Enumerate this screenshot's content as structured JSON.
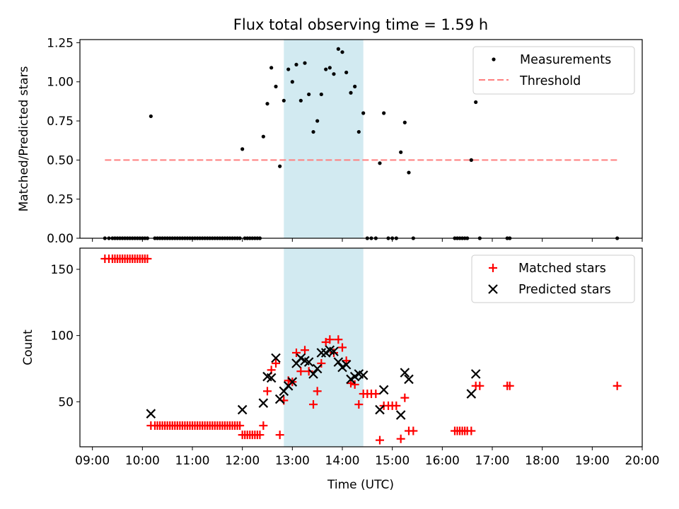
{
  "chart_data": {
    "type": "scatter",
    "title": "Flux total observing time = 1.59 h",
    "xlabel": "Time (UTC)",
    "x_units": "hours UTC",
    "xlim": [
      8.75,
      20.0
    ],
    "x_ticks": [
      9,
      10,
      11,
      12,
      13,
      14,
      15,
      16,
      17,
      18,
      19,
      20
    ],
    "x_tick_labels": [
      "09:00",
      "10:00",
      "11:00",
      "12:00",
      "13:00",
      "14:00",
      "15:00",
      "16:00",
      "17:00",
      "18:00",
      "19:00",
      "20:00"
    ],
    "highlight_span": {
      "x_start": 12.83,
      "x_end": 14.42,
      "color": "#add8e6"
    },
    "top": {
      "ylabel": "Matched/Predicted stars",
      "ylim": [
        0,
        1.27
      ],
      "y_ticks": [
        0,
        0.25,
        0.5,
        0.75,
        1.0,
        1.25
      ],
      "y_tick_labels": [
        "0.00",
        "0.25",
        "0.50",
        "0.75",
        "1.00",
        "1.25"
      ],
      "legend_position": "top-right",
      "legend": [
        "Measurements",
        "Threshold"
      ],
      "threshold": {
        "name": "Threshold",
        "y": 0.5,
        "x_start": 9.25,
        "x_end": 19.5,
        "color": "#ff7f7f"
      },
      "measurements": {
        "name": "Measurements",
        "color": "#000000",
        "x": [
          9.25,
          9.33,
          9.4,
          9.45,
          9.5,
          9.55,
          9.6,
          9.65,
          9.7,
          9.75,
          9.8,
          9.85,
          9.9,
          9.95,
          10.0,
          10.05,
          10.1,
          10.17,
          10.25,
          10.3,
          10.35,
          10.4,
          10.45,
          10.5,
          10.55,
          10.6,
          10.65,
          10.7,
          10.75,
          10.8,
          10.85,
          10.9,
          10.95,
          11.0,
          11.05,
          11.1,
          11.15,
          11.2,
          11.25,
          11.3,
          11.35,
          11.4,
          11.45,
          11.5,
          11.55,
          11.6,
          11.65,
          11.7,
          11.75,
          11.8,
          11.85,
          11.9,
          11.95,
          12.0,
          12.05,
          12.1,
          12.15,
          12.2,
          12.25,
          12.3,
          12.35,
          12.42,
          12.5,
          12.58,
          12.67,
          12.75,
          12.83,
          12.92,
          13.0,
          13.08,
          13.17,
          13.25,
          13.33,
          13.42,
          13.5,
          13.58,
          13.67,
          13.75,
          13.83,
          13.92,
          14.0,
          14.08,
          14.17,
          14.25,
          14.33,
          14.42,
          14.5,
          14.58,
          14.67,
          14.75,
          14.83,
          14.92,
          15.0,
          15.08,
          15.17,
          15.25,
          15.33,
          15.42,
          16.25,
          16.3,
          16.35,
          16.4,
          16.45,
          16.5,
          16.58,
          16.67,
          16.75,
          17.3,
          17.35,
          19.5
        ],
        "y": [
          0,
          0,
          0,
          0,
          0,
          0,
          0,
          0,
          0,
          0,
          0,
          0,
          0,
          0,
          0,
          0,
          0,
          0.78,
          0,
          0,
          0,
          0,
          0,
          0,
          0,
          0,
          0,
          0,
          0,
          0,
          0,
          0,
          0,
          0,
          0,
          0,
          0,
          0,
          0,
          0,
          0,
          0,
          0,
          0,
          0,
          0,
          0,
          0,
          0,
          0,
          0,
          0,
          0,
          0.57,
          0,
          0,
          0,
          0,
          0,
          0,
          0,
          0.65,
          0.86,
          1.09,
          0.97,
          0.46,
          0.88,
          1.08,
          1.0,
          1.11,
          0.88,
          1.12,
          0.92,
          0.68,
          0.75,
          0.92,
          1.08,
          1.09,
          1.05,
          1.21,
          1.19,
          1.06,
          0.93,
          0.97,
          0.68,
          0.8,
          0,
          0,
          0,
          0.48,
          0.8,
          0,
          0,
          0,
          0.55,
          0.74,
          0.42,
          0,
          0,
          0,
          0,
          0,
          0,
          0,
          0.5,
          0.87,
          0,
          0,
          0,
          0
        ]
      }
    },
    "bottom": {
      "ylabel": "Count",
      "ylim": [
        16,
        166
      ],
      "y_ticks": [
        50,
        100,
        150
      ],
      "y_tick_labels": [
        "50",
        "100",
        "150"
      ],
      "legend_position": "top-right",
      "legend": [
        "Matched stars",
        "Predicted stars"
      ],
      "matched": {
        "name": "Matched stars",
        "color": "#ff0000",
        "x": [
          9.25,
          9.33,
          9.4,
          9.45,
          9.5,
          9.55,
          9.6,
          9.65,
          9.7,
          9.75,
          9.8,
          9.85,
          9.9,
          9.95,
          10.0,
          10.05,
          10.1,
          10.17,
          10.25,
          10.3,
          10.35,
          10.4,
          10.45,
          10.5,
          10.55,
          10.6,
          10.65,
          10.7,
          10.75,
          10.8,
          10.85,
          10.9,
          10.95,
          11.0,
          11.05,
          11.1,
          11.15,
          11.2,
          11.25,
          11.3,
          11.35,
          11.4,
          11.45,
          11.5,
          11.55,
          11.6,
          11.65,
          11.7,
          11.75,
          11.8,
          11.85,
          11.9,
          11.95,
          12.0,
          12.05,
          12.1,
          12.15,
          12.2,
          12.25,
          12.3,
          12.35,
          12.42,
          12.5,
          12.58,
          12.67,
          12.75,
          12.83,
          12.92,
          13.0,
          13.08,
          13.17,
          13.25,
          13.33,
          13.42,
          13.5,
          13.58,
          13.67,
          13.75,
          13.83,
          13.92,
          14.0,
          14.08,
          14.17,
          14.25,
          14.33,
          14.42,
          14.5,
          14.58,
          14.67,
          14.75,
          14.83,
          14.92,
          15.0,
          15.08,
          15.17,
          15.25,
          15.33,
          15.42,
          16.25,
          16.3,
          16.35,
          16.4,
          16.45,
          16.5,
          16.58,
          16.67,
          16.75,
          17.3,
          17.35,
          19.5
        ],
        "y": [
          158,
          158,
          158,
          158,
          158,
          158,
          158,
          158,
          158,
          158,
          158,
          158,
          158,
          158,
          158,
          158,
          158,
          32,
          32,
          32,
          32,
          32,
          32,
          32,
          32,
          32,
          32,
          32,
          32,
          32,
          32,
          32,
          32,
          32,
          32,
          32,
          32,
          32,
          32,
          32,
          32,
          32,
          32,
          32,
          32,
          32,
          32,
          32,
          32,
          32,
          32,
          32,
          32,
          25,
          25,
          25,
          25,
          25,
          25,
          25,
          25,
          32,
          58,
          74,
          79,
          25,
          51,
          66,
          65,
          87,
          73,
          89,
          73,
          48,
          58,
          79,
          95,
          97,
          87,
          97,
          91,
          81,
          64,
          63,
          48,
          56,
          56,
          56,
          56,
          21,
          47,
          47,
          47,
          47,
          22,
          53,
          28,
          28,
          28,
          28,
          28,
          28,
          28,
          28,
          28,
          62,
          62,
          62,
          62,
          62
        ]
      },
      "predicted": {
        "name": "Predicted stars",
        "color": "#000000",
        "x": [
          10.17,
          12.0,
          12.42,
          12.5,
          12.58,
          12.67,
          12.75,
          12.83,
          12.92,
          13.0,
          13.08,
          13.17,
          13.25,
          13.33,
          13.42,
          13.5,
          13.58,
          13.67,
          13.75,
          13.83,
          13.92,
          14.0,
          14.08,
          14.17,
          14.25,
          14.33,
          14.42,
          14.75,
          14.83,
          15.17,
          15.25,
          15.33,
          16.58,
          16.67
        ],
        "y": [
          41,
          44,
          49,
          69,
          68,
          83,
          52,
          58,
          62,
          65,
          79,
          83,
          81,
          80,
          71,
          75,
          87,
          87,
          89,
          88,
          80,
          76,
          78,
          67,
          69,
          71,
          70,
          44,
          59,
          40,
          72,
          67,
          56,
          71
        ]
      }
    }
  }
}
